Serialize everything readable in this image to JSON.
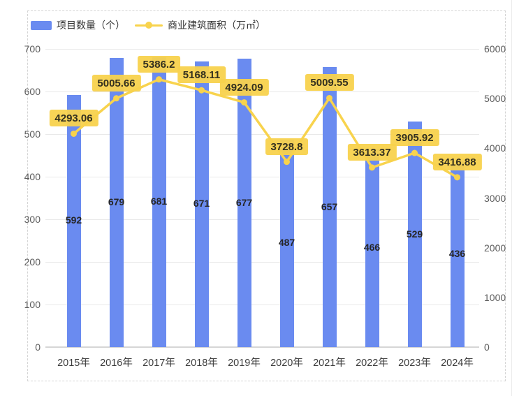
{
  "legend": {
    "bar_label": "项目数量（个）",
    "line_label": "商业建筑面积（万㎡）"
  },
  "colors": {
    "bar": "#6a8bf0",
    "line": "#f8d34d",
    "label_bg": "#f8d24f",
    "grid": "#e9e9e9",
    "axis_text": "#5c5c5c"
  },
  "chart_data": {
    "type": "bar",
    "subtype": "bar+line combo, dual y-axis",
    "categories": [
      "2015年",
      "2016年",
      "2017年",
      "2018年",
      "2019年",
      "2020年",
      "2021年",
      "2022年",
      "2023年",
      "2024年"
    ],
    "series": [
      {
        "name": "项目数量（个）",
        "type": "bar",
        "axis": "left",
        "color": "#6a8bf0",
        "values": [
          592,
          679,
          681,
          671,
          677,
          487,
          657,
          466,
          529,
          436
        ]
      },
      {
        "name": "商业建筑面积（万㎡）",
        "type": "line",
        "axis": "right",
        "color": "#f8d34d",
        "values": [
          4293.06,
          5005.66,
          5386.2,
          5168.11,
          4924.09,
          3728.8,
          5009.55,
          3613.37,
          3905.92,
          3416.88
        ]
      }
    ],
    "left_axis": {
      "label": "",
      "min": 0,
      "max": 700,
      "ticks": [
        0,
        100,
        200,
        300,
        400,
        500,
        600,
        700
      ]
    },
    "right_axis": {
      "label": "",
      "min": 0,
      "max": 6000,
      "ticks": [
        0,
        1000,
        2000,
        3000,
        4000,
        5000,
        6000
      ]
    },
    "grid": true,
    "legend_position": "top-left",
    "value_labels": {
      "bar": "centered inside bar",
      "line": "yellow badge above point"
    }
  }
}
